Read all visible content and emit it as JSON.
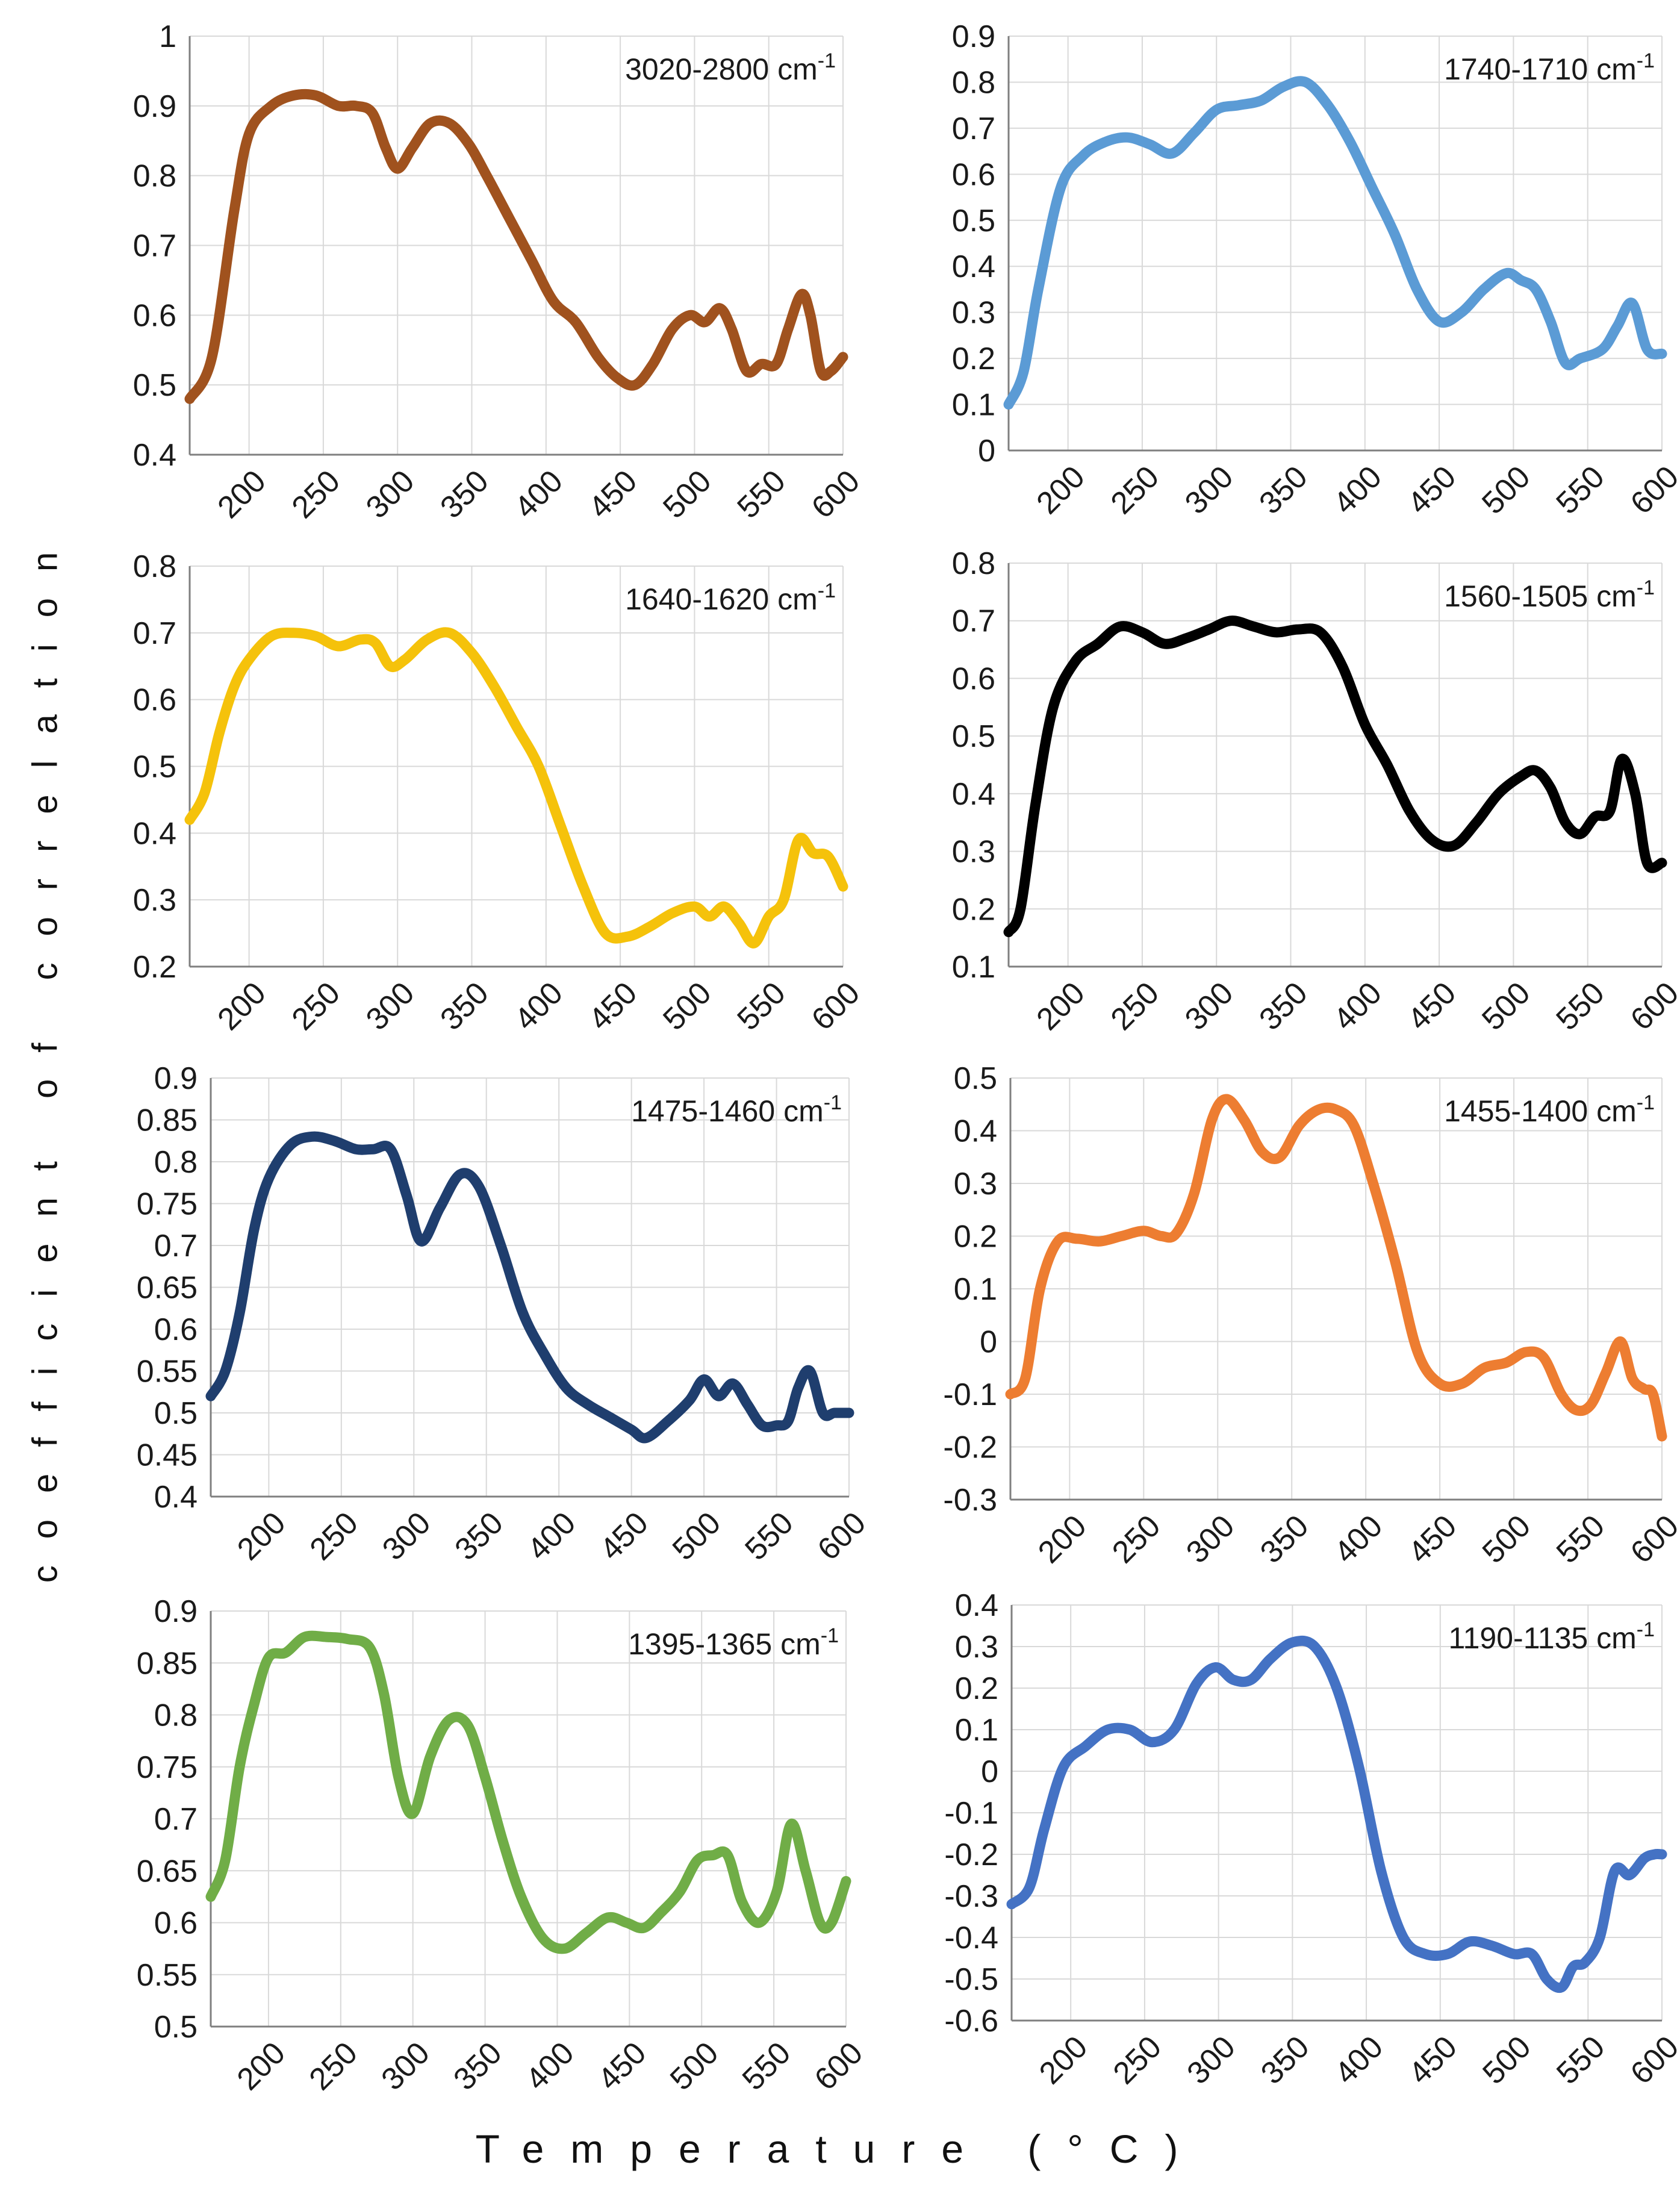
{
  "figure": {
    "ylabel": "coefficient of correlation",
    "xlabel": "Temperature (°C)"
  },
  "chart_data": [
    {
      "type": "line",
      "title": "3020-2800 cm-1",
      "color": "#A0521E",
      "xlabel": "Temperature (°C)",
      "ylabel": "coefficient of correlation",
      "xlim": [
        160,
        600
      ],
      "ylim": [
        0.4,
        1
      ],
      "xticks": [
        200,
        250,
        300,
        350,
        400,
        450,
        500,
        550,
        600
      ],
      "yticks": [
        "0.4",
        "0.5",
        "0.6",
        "0.7",
        "0.8",
        "0.9",
        "1"
      ],
      "x": [
        160,
        175,
        190,
        200,
        215,
        230,
        245,
        260,
        272,
        283,
        292,
        300,
        310,
        322,
        335,
        348,
        360,
        375,
        390,
        405,
        420,
        435,
        448,
        460,
        472,
        485,
        497,
        507,
        517,
        525,
        535,
        545,
        555,
        563,
        572,
        578,
        585,
        592,
        600
      ],
      "values": [
        0.48,
        0.54,
        0.75,
        0.86,
        0.9,
        0.915,
        0.915,
        0.9,
        0.9,
        0.89,
        0.84,
        0.81,
        0.84,
        0.875,
        0.875,
        0.845,
        0.8,
        0.74,
        0.68,
        0.62,
        0.59,
        0.54,
        0.51,
        0.5,
        0.53,
        0.58,
        0.6,
        0.59,
        0.61,
        0.58,
        0.52,
        0.53,
        0.53,
        0.58,
        0.63,
        0.6,
        0.52,
        0.52,
        0.54
      ]
    },
    {
      "type": "line",
      "title": "1740-1710 cm-1",
      "color": "#5B9BD5",
      "xlabel": "Temperature (°C)",
      "ylabel": "coefficient of correlation",
      "xlim": [
        160,
        600
      ],
      "ylim": [
        0,
        0.9
      ],
      "xticks": [
        200,
        250,
        300,
        350,
        400,
        450,
        500,
        550,
        600
      ],
      "yticks": [
        "0",
        "0.1",
        "0.2",
        "0.3",
        "0.4",
        "0.5",
        "0.6",
        "0.7",
        "0.8",
        "0.9"
      ],
      "x": [
        160,
        170,
        180,
        195,
        210,
        225,
        240,
        255,
        270,
        285,
        300,
        315,
        330,
        345,
        360,
        375,
        390,
        405,
        420,
        435,
        450,
        465,
        480,
        495,
        505,
        515,
        525,
        535,
        545,
        560,
        570,
        580,
        590,
        600
      ],
      "values": [
        0.1,
        0.17,
        0.35,
        0.57,
        0.64,
        0.67,
        0.68,
        0.665,
        0.645,
        0.69,
        0.74,
        0.75,
        0.76,
        0.79,
        0.8,
        0.75,
        0.67,
        0.57,
        0.47,
        0.35,
        0.28,
        0.3,
        0.35,
        0.385,
        0.37,
        0.35,
        0.28,
        0.19,
        0.2,
        0.22,
        0.27,
        0.32,
        0.22,
        0.21
      ]
    },
    {
      "type": "line",
      "title": "1640-1620 cm-1",
      "color": "#F5C20B",
      "xlabel": "Temperature (°C)",
      "ylabel": "coefficient of correlation",
      "xlim": [
        160,
        600
      ],
      "ylim": [
        0.2,
        0.8
      ],
      "xticks": [
        200,
        250,
        300,
        350,
        400,
        450,
        500,
        550,
        600
      ],
      "yticks": [
        "0.2",
        "0.3",
        "0.4",
        "0.5",
        "0.6",
        "0.7",
        "0.8"
      ],
      "x": [
        160,
        170,
        180,
        190,
        200,
        215,
        230,
        245,
        260,
        275,
        285,
        295,
        305,
        320,
        335,
        350,
        365,
        380,
        395,
        410,
        425,
        440,
        455,
        470,
        485,
        500,
        510,
        520,
        530,
        540,
        550,
        560,
        570,
        580,
        590,
        600
      ],
      "values": [
        0.42,
        0.46,
        0.55,
        0.62,
        0.66,
        0.695,
        0.7,
        0.695,
        0.68,
        0.69,
        0.685,
        0.65,
        0.66,
        0.69,
        0.7,
        0.67,
        0.62,
        0.56,
        0.5,
        0.41,
        0.32,
        0.25,
        0.245,
        0.26,
        0.28,
        0.29,
        0.275,
        0.29,
        0.265,
        0.235,
        0.275,
        0.3,
        0.39,
        0.37,
        0.365,
        0.32
      ]
    },
    {
      "type": "line",
      "title": "1560-1505 cm-1",
      "color": "#000000",
      "xlabel": "Temperature (°C)",
      "ylabel": "coefficient of correlation",
      "xlim": [
        160,
        600
      ],
      "ylim": [
        0.1,
        0.8
      ],
      "xticks": [
        200,
        250,
        300,
        350,
        400,
        450,
        500,
        550,
        600
      ],
      "yticks": [
        "0.1",
        "0.2",
        "0.3",
        "0.4",
        "0.5",
        "0.6",
        "0.7",
        "0.8"
      ],
      "x": [
        160,
        168,
        178,
        190,
        205,
        220,
        235,
        250,
        265,
        280,
        295,
        310,
        325,
        340,
        355,
        370,
        385,
        400,
        415,
        430,
        445,
        460,
        475,
        490,
        505,
        515,
        525,
        535,
        545,
        555,
        565,
        573,
        582,
        590,
        600
      ],
      "values": [
        0.16,
        0.2,
        0.38,
        0.55,
        0.63,
        0.66,
        0.69,
        0.68,
        0.66,
        0.67,
        0.685,
        0.7,
        0.69,
        0.68,
        0.685,
        0.68,
        0.62,
        0.52,
        0.45,
        0.37,
        0.32,
        0.31,
        0.35,
        0.4,
        0.43,
        0.44,
        0.41,
        0.35,
        0.33,
        0.36,
        0.37,
        0.46,
        0.4,
        0.28,
        0.28
      ]
    },
    {
      "type": "line",
      "title": "1475-1460 cm-1",
      "color": "#1F3E6E",
      "xlabel": "Temperature (°C)",
      "ylabel": "coefficient of correlation",
      "xlim": [
        160,
        600
      ],
      "ylim": [
        0.4,
        0.9
      ],
      "xticks": [
        200,
        250,
        300,
        350,
        400,
        450,
        500,
        550,
        600
      ],
      "yticks": [
        "0.4",
        "0.45",
        "0.5",
        "0.55",
        "0.6",
        "0.65",
        "0.7",
        "0.75",
        "0.8",
        "0.85",
        "0.9"
      ],
      "x": [
        160,
        170,
        180,
        190,
        200,
        215,
        230,
        245,
        260,
        272,
        284,
        295,
        305,
        318,
        332,
        345,
        360,
        375,
        390,
        405,
        420,
        435,
        450,
        460,
        475,
        490,
        500,
        510,
        520,
        530,
        540,
        550,
        558,
        565,
        573,
        582,
        590,
        600
      ],
      "values": [
        0.52,
        0.55,
        0.62,
        0.72,
        0.78,
        0.82,
        0.83,
        0.825,
        0.815,
        0.815,
        0.815,
        0.76,
        0.705,
        0.745,
        0.785,
        0.77,
        0.7,
        0.62,
        0.57,
        0.53,
        0.51,
        0.495,
        0.48,
        0.47,
        0.49,
        0.515,
        0.54,
        0.52,
        0.535,
        0.51,
        0.485,
        0.485,
        0.49,
        0.53,
        0.55,
        0.5,
        0.5,
        0.5
      ]
    },
    {
      "type": "line",
      "title": "1455-1400 cm-1",
      "color": "#ED7D31",
      "xlabel": "Temperature (°C)",
      "ylabel": "coefficient of correlation",
      "xlim": [
        160,
        600
      ],
      "ylim": [
        -0.3,
        0.5
      ],
      "xticks": [
        200,
        250,
        300,
        350,
        400,
        450,
        500,
        550,
        600
      ],
      "yticks": [
        "-0.3",
        "-0.2",
        "-0.1",
        "0",
        "0.1",
        "0.2",
        "0.3",
        "0.4",
        "0.5"
      ],
      "x": [
        160,
        170,
        180,
        192,
        205,
        220,
        235,
        250,
        262,
        272,
        284,
        296,
        306,
        318,
        330,
        342,
        355,
        368,
        380,
        392,
        405,
        420,
        435,
        450,
        465,
        480,
        495,
        508,
        520,
        532,
        542,
        552,
        562,
        572,
        580,
        588,
        594,
        600
      ],
      "values": [
        -0.1,
        -0.07,
        0.1,
        0.19,
        0.195,
        0.19,
        0.2,
        0.21,
        0.2,
        0.205,
        0.28,
        0.42,
        0.46,
        0.42,
        0.36,
        0.35,
        0.41,
        0.44,
        0.44,
        0.41,
        0.3,
        0.15,
        -0.02,
        -0.08,
        -0.08,
        -0.05,
        -0.04,
        -0.02,
        -0.03,
        -0.1,
        -0.13,
        -0.12,
        -0.06,
        0,
        -0.07,
        -0.09,
        -0.1,
        -0.18
      ]
    },
    {
      "type": "line",
      "title": "1395-1365 cm-1",
      "color": "#70AD47",
      "xlabel": "Temperature (°C)",
      "ylabel": "coefficient of correlation",
      "xlim": [
        160,
        600
      ],
      "ylim": [
        0.5,
        0.9
      ],
      "xticks": [
        200,
        250,
        300,
        350,
        400,
        450,
        500,
        550,
        600
      ],
      "yticks": [
        "0.5",
        "0.55",
        "0.6",
        "0.65",
        "0.7",
        "0.75",
        "0.8",
        "0.85",
        "0.9"
      ],
      "x": [
        160,
        170,
        180,
        190,
        200,
        212,
        225,
        240,
        255,
        270,
        280,
        290,
        300,
        312,
        325,
        338,
        350,
        362,
        375,
        390,
        405,
        420,
        435,
        448,
        460,
        472,
        485,
        497,
        508,
        518,
        528,
        540,
        552,
        562,
        572,
        582,
        590,
        600
      ],
      "values": [
        0.625,
        0.66,
        0.75,
        0.81,
        0.855,
        0.86,
        0.875,
        0.875,
        0.873,
        0.865,
        0.82,
        0.74,
        0.705,
        0.76,
        0.795,
        0.79,
        0.74,
        0.68,
        0.625,
        0.585,
        0.575,
        0.59,
        0.605,
        0.6,
        0.595,
        0.61,
        0.63,
        0.66,
        0.665,
        0.665,
        0.62,
        0.6,
        0.63,
        0.695,
        0.65,
        0.6,
        0.6,
        0.64
      ]
    },
    {
      "type": "line",
      "title": "1190-1135 cm-1",
      "color": "#4472C4",
      "xlabel": "Temperature (°C)",
      "ylabel": "coefficient of correlation",
      "xlim": [
        160,
        600
      ],
      "ylim": [
        -0.6,
        0.4
      ],
      "xticks": [
        200,
        250,
        300,
        350,
        400,
        450,
        500,
        550,
        600
      ],
      "yticks": [
        "-0.6",
        "-0.5",
        "-0.4",
        "-0.3",
        "-0.2",
        "-0.1",
        "0",
        "0.1",
        "0.2",
        "0.3",
        "0.4"
      ],
      "x": [
        160,
        172,
        182,
        195,
        210,
        225,
        240,
        255,
        270,
        285,
        298,
        310,
        322,
        335,
        350,
        365,
        380,
        395,
        410,
        425,
        440,
        455,
        470,
        485,
        500,
        512,
        522,
        532,
        540,
        548,
        558,
        568,
        578,
        588,
        595,
        600
      ],
      "values": [
        -0.32,
        -0.28,
        -0.14,
        0.01,
        0.06,
        0.1,
        0.1,
        0.07,
        0.1,
        0.21,
        0.25,
        0.22,
        0.22,
        0.27,
        0.31,
        0.3,
        0.2,
        0.01,
        -0.24,
        -0.4,
        -0.44,
        -0.44,
        -0.41,
        -0.42,
        -0.44,
        -0.44,
        -0.5,
        -0.52,
        -0.47,
        -0.46,
        -0.4,
        -0.24,
        -0.25,
        -0.21,
        -0.2,
        -0.2
      ]
    }
  ]
}
